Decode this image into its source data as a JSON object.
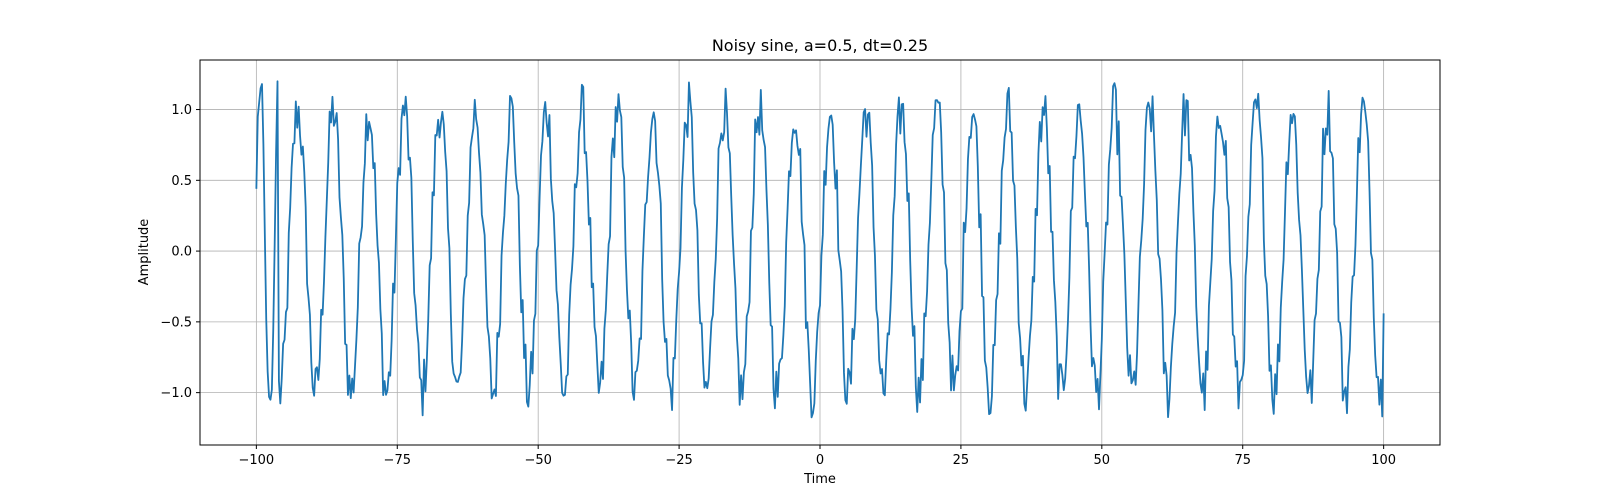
{
  "chart_data": {
    "type": "line",
    "title": "Noisy sine, a=0.5, dt=0.25",
    "xlabel": "Time",
    "ylabel": "Amplitude",
    "xlim": [
      -110,
      110
    ],
    "ylim": [
      -1.37,
      1.35
    ],
    "xticks": [
      -100,
      -75,
      -50,
      -25,
      0,
      25,
      50,
      75,
      100
    ],
    "xtick_labels": [
      "−100",
      "−75",
      "−50",
      "−25",
      "0",
      "25",
      "50",
      "75",
      "100"
    ],
    "yticks": [
      -1.0,
      -0.5,
      0.0,
      0.5,
      1.0
    ],
    "ytick_labels": [
      "−1.0",
      "−0.5",
      "0.0",
      "0.5",
      "1.0"
    ],
    "grid": true,
    "series": [
      {
        "color": "#1f77b4",
        "x_start": -100,
        "x_end": 100,
        "x_step": 0.25,
        "approx_period": 6.3,
        "y_first": 0.44,
        "y_last": -0.44,
        "y_range": [
          -1.24,
          1.23
        ],
        "y_sample": [
          0.44,
          0.95,
          1.05,
          1.15,
          1.18,
          0.75,
          0.12,
          -0.48,
          -0.85,
          -1.03,
          -1.05,
          -0.98,
          -0.55,
          0.05,
          0.7,
          1.2
        ]
      }
    ]
  }
}
